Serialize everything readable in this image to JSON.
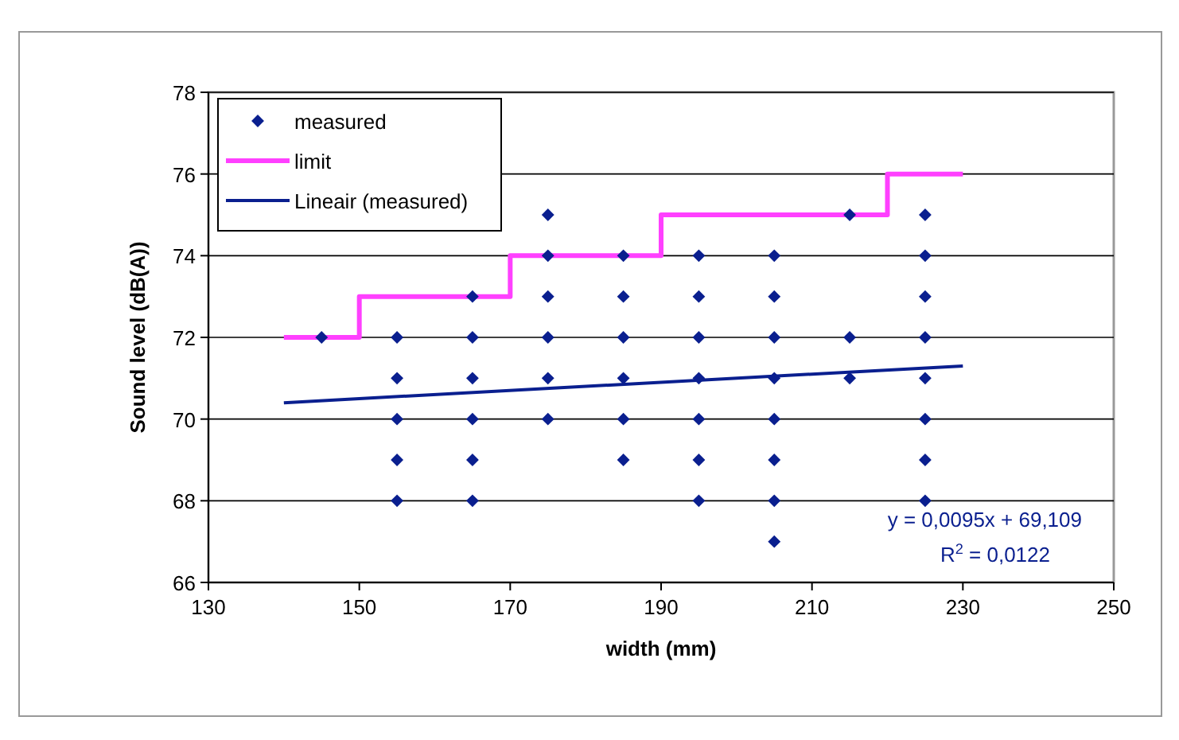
{
  "chart_data": {
    "type": "scatter",
    "xlabel": "width (mm)",
    "ylabel": "Sound level (dB(A))",
    "xlim": [
      130,
      250
    ],
    "xticks": [
      130,
      150,
      170,
      190,
      210,
      230,
      250
    ],
    "ylim": [
      66,
      78
    ],
    "yticks": [
      66,
      68,
      70,
      72,
      74,
      76,
      78
    ],
    "grid": "y",
    "legend": "top left",
    "series": [
      {
        "name": "measured",
        "marker": "diamond",
        "color": "#0a1f8f",
        "x": [
          145,
          155,
          155,
          155,
          155,
          155,
          165,
          165,
          165,
          165,
          165,
          165,
          175,
          175,
          175,
          175,
          175,
          175,
          185,
          185,
          185,
          185,
          185,
          185,
          195,
          195,
          195,
          195,
          195,
          195,
          195,
          205,
          205,
          205,
          205,
          205,
          205,
          205,
          205,
          215,
          215,
          215,
          225,
          225,
          225,
          225,
          225,
          225,
          225,
          225
        ],
        "values": [
          72,
          72,
          71,
          70,
          69,
          68,
          73,
          72,
          71,
          70,
          69,
          68,
          75,
          74,
          73,
          72,
          71,
          70,
          74,
          73,
          72,
          71,
          70,
          69,
          74,
          73,
          72,
          71,
          70,
          69,
          68,
          74,
          73,
          72,
          71,
          70,
          69,
          68,
          67,
          75,
          72,
          71,
          75,
          74,
          73,
          72,
          71,
          70,
          69,
          68
        ]
      },
      {
        "name": "limit",
        "type": "step",
        "marker": "none",
        "color": "#ff40ff",
        "x": [
          140,
          150,
          170,
          190,
          220,
          230
        ],
        "values": [
          72,
          73,
          74,
          75,
          76,
          76
        ]
      },
      {
        "name": "Lineair (measured)",
        "type": "line",
        "marker": "none",
        "color": "#0a1f8f",
        "x": [
          140,
          230
        ],
        "values": [
          70.4,
          71.3
        ]
      }
    ],
    "annotations": [
      "y = 0,0095x + 69,109",
      "R$^{2}$ = 0,0122"
    ]
  }
}
